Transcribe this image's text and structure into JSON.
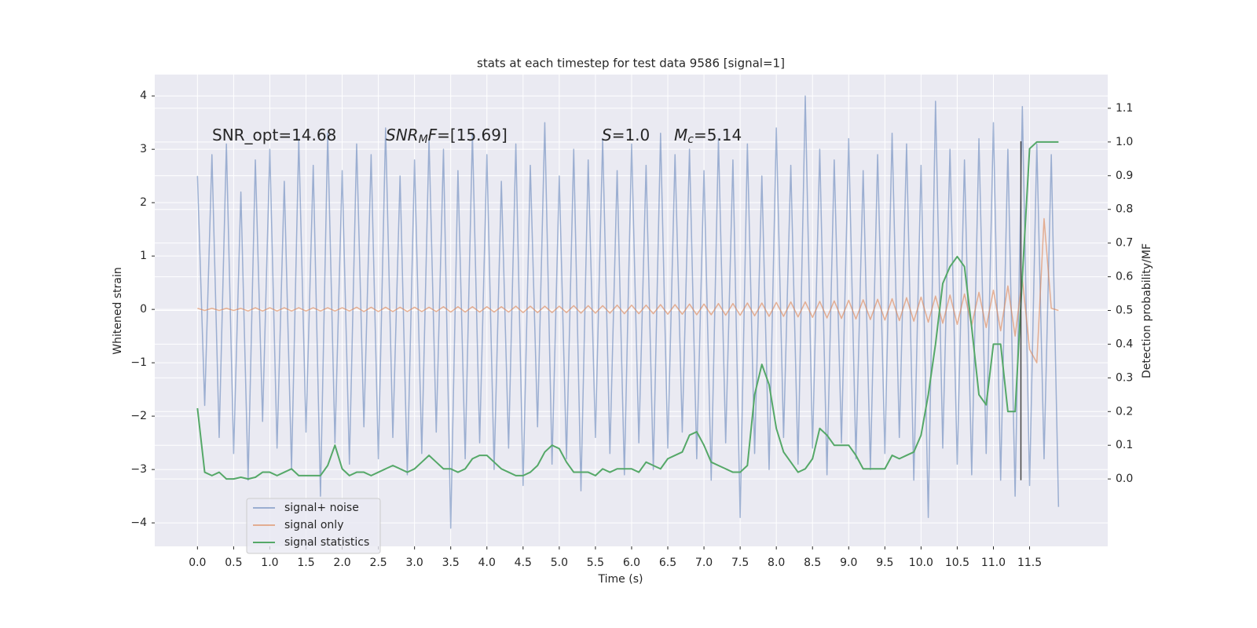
{
  "chart_data": {
    "type": "line",
    "title": "stats at each timestep for test data 9586 [signal=1]",
    "xlabel": "Time (s)",
    "ylabel": "Whitened strain",
    "y2label": "Detection probability/MF",
    "annotations": [
      [
        "SNR_opt=14.68"
      ],
      [
        "SNR",
        "M",
        "F",
        "=[15.69]"
      ],
      [
        "S",
        "=1.0"
      ],
      [
        "M",
        "c",
        "=5.14"
      ]
    ],
    "xlim": [
      -0.59,
      12.58
    ],
    "ylim": [
      -4.44,
      4.4
    ],
    "y2lim": [
      -0.2,
      1.2
    ],
    "xticks": [
      {
        "value": 0,
        "label": "0.0"
      },
      0.5,
      {
        "value": 1,
        "label": "1.0"
      },
      1.5,
      {
        "value": 2,
        "label": "2.0"
      },
      2.5,
      {
        "value": 3,
        "label": "3.0"
      },
      3.5,
      {
        "value": 4,
        "label": "4.0"
      },
      4.5,
      {
        "value": 5,
        "label": "5.0"
      },
      5.5,
      {
        "value": 6,
        "label": "6.0"
      },
      6.5,
      {
        "value": 7,
        "label": "7.0"
      },
      7.5,
      {
        "value": 8,
        "label": "8.0"
      },
      8.5,
      {
        "value": 9,
        "label": "9.0"
      },
      9.5,
      {
        "value": 10,
        "label": "10.0"
      },
      10.5,
      {
        "value": 11,
        "label": "11.0"
      },
      11.5
    ],
    "yticks": [
      {
        "value": -4,
        "label": "−4"
      },
      {
        "value": -3,
        "label": "−3"
      },
      {
        "value": -2,
        "label": "−2"
      },
      {
        "value": -1,
        "label": "−1"
      },
      0,
      1,
      2,
      3,
      4
    ],
    "y2ticks": [
      {
        "value": 0,
        "label": "0.0"
      },
      0.1,
      0.2,
      0.3,
      0.4,
      0.5,
      0.6,
      0.7,
      0.8,
      0.9,
      {
        "value": 1,
        "label": "1.0"
      },
      1.1
    ],
    "grid": true,
    "legend": "lower left",
    "vline": {
      "x": 11.38,
      "y": [
        -3.2,
        3.15
      ],
      "color": "#444444"
    },
    "x": [
      0.0,
      0.1,
      0.2,
      0.3,
      0.4,
      0.5,
      0.6,
      0.7,
      0.8,
      0.9,
      1.0,
      1.1,
      1.2,
      1.3,
      1.4,
      1.5,
      1.6,
      1.7,
      1.8,
      1.9,
      2.0,
      2.1,
      2.2,
      2.3,
      2.4,
      2.5,
      2.6,
      2.7,
      2.8,
      2.9,
      3.0,
      3.1,
      3.2,
      3.3,
      3.4,
      3.5,
      3.6,
      3.7,
      3.8,
      3.9,
      4.0,
      4.1,
      4.2,
      4.3,
      4.4,
      4.5,
      4.6,
      4.7,
      4.8,
      4.9,
      5.0,
      5.1,
      5.2,
      5.3,
      5.4,
      5.5,
      5.6,
      5.7,
      5.8,
      5.9,
      6.0,
      6.1,
      6.2,
      6.3,
      6.4,
      6.5,
      6.6,
      6.7,
      6.8,
      6.9,
      7.0,
      7.1,
      7.2,
      7.3,
      7.4,
      7.5,
      7.6,
      7.7,
      7.8,
      7.9,
      8.0,
      8.1,
      8.2,
      8.3,
      8.4,
      8.5,
      8.6,
      8.7,
      8.8,
      8.9,
      9.0,
      9.1,
      9.2,
      9.3,
      9.4,
      9.5,
      9.6,
      9.7,
      9.8,
      9.9,
      10.0,
      10.1,
      10.2,
      10.3,
      10.4,
      10.5,
      10.6,
      10.7,
      10.8,
      10.9,
      11.0,
      11.1,
      11.2,
      11.3,
      11.4,
      11.5,
      11.6,
      11.7,
      11.8,
      11.9
    ],
    "series": [
      {
        "name": "signal+ noise",
        "color": "#4c72b0",
        "values": [
          2.5,
          -1.8,
          2.9,
          -2.4,
          3.1,
          -2.7,
          2.2,
          -3.2,
          2.8,
          -2.1,
          3.0,
          -2.6,
          2.4,
          -3.0,
          3.2,
          -2.3,
          2.7,
          -3.5,
          3.3,
          -2.5,
          2.6,
          -2.9,
          3.1,
          -2.2,
          2.9,
          -2.8,
          3.4,
          -2.4,
          2.5,
          -3.1,
          2.8,
          -2.7,
          3.2,
          -2.3,
          3.0,
          -4.1,
          2.6,
          -2.8,
          3.3,
          -2.5,
          2.9,
          -3.0,
          2.4,
          -2.6,
          3.1,
          -3.3,
          2.7,
          -2.2,
          3.5,
          -2.9,
          2.5,
          -2.8,
          3.0,
          -3.4,
          2.8,
          -2.4,
          3.2,
          -2.7,
          2.6,
          -3.1,
          3.1,
          -2.5,
          2.7,
          -3.0,
          3.3,
          -2.6,
          2.9,
          -2.3,
          3.0,
          -2.8,
          2.6,
          -3.2,
          3.2,
          -2.5,
          2.8,
          -3.9,
          3.1,
          -2.7,
          2.5,
          -3.0,
          3.4,
          -2.4,
          2.7,
          -2.9,
          4.0,
          -2.6,
          3.0,
          -3.1,
          2.8,
          -2.5,
          3.2,
          -2.8,
          2.6,
          -3.0,
          2.9,
          -2.7,
          3.3,
          -2.4,
          3.1,
          -3.2,
          2.7,
          -3.9,
          3.9,
          -2.6,
          3.0,
          -2.9,
          2.8,
          -3.1,
          3.2,
          -2.7,
          3.5,
          -3.2,
          3.0,
          -3.5,
          3.8,
          -3.3,
          3.1,
          -2.8,
          2.9,
          -3.7
        ]
      },
      {
        "name": "signal only",
        "color": "#dd8452",
        "values": [
          0.02,
          -0.02,
          0.02,
          -0.02,
          0.02,
          -0.02,
          0.02,
          -0.03,
          0.03,
          -0.03,
          0.03,
          -0.03,
          0.03,
          -0.03,
          0.03,
          -0.03,
          0.03,
          -0.03,
          0.03,
          -0.03,
          0.03,
          -0.03,
          0.04,
          -0.04,
          0.04,
          -0.04,
          0.04,
          -0.04,
          0.04,
          -0.04,
          0.04,
          -0.04,
          0.04,
          -0.04,
          0.05,
          -0.05,
          0.05,
          -0.05,
          0.05,
          -0.05,
          0.05,
          -0.05,
          0.05,
          -0.05,
          0.06,
          -0.06,
          0.06,
          -0.06,
          0.06,
          -0.06,
          0.06,
          -0.06,
          0.07,
          -0.07,
          0.07,
          -0.07,
          0.07,
          -0.07,
          0.08,
          -0.08,
          0.08,
          -0.08,
          0.08,
          -0.08,
          0.09,
          -0.09,
          0.09,
          -0.09,
          0.1,
          -0.1,
          0.1,
          -0.1,
          0.11,
          -0.11,
          0.11,
          -0.11,
          0.12,
          -0.12,
          0.12,
          -0.13,
          0.13,
          -0.13,
          0.14,
          -0.14,
          0.14,
          -0.15,
          0.15,
          -0.16,
          0.16,
          -0.17,
          0.17,
          -0.18,
          0.18,
          -0.19,
          0.19,
          -0.2,
          0.2,
          -0.21,
          0.22,
          -0.22,
          0.23,
          -0.24,
          0.25,
          -0.26,
          0.27,
          -0.28,
          0.29,
          -0.3,
          0.32,
          -0.34,
          0.36,
          -0.4,
          0.44,
          -0.5,
          0.58,
          -0.75,
          -1.0,
          1.7,
          0.02,
          -0.02
        ]
      },
      {
        "name": "signal statistics",
        "color": "#55a868",
        "axis": "y2",
        "values": [
          0.21,
          0.02,
          0.01,
          0.02,
          0.0,
          0.0,
          0.005,
          0.0,
          0.005,
          0.02,
          0.02,
          0.01,
          0.02,
          0.03,
          0.01,
          0.01,
          0.01,
          0.01,
          0.04,
          0.1,
          0.03,
          0.01,
          0.02,
          0.02,
          0.01,
          0.02,
          0.03,
          0.04,
          0.03,
          0.02,
          0.03,
          0.05,
          0.07,
          0.05,
          0.03,
          0.03,
          0.02,
          0.03,
          0.06,
          0.07,
          0.07,
          0.05,
          0.03,
          0.02,
          0.01,
          0.01,
          0.02,
          0.04,
          0.08,
          0.1,
          0.09,
          0.05,
          0.02,
          0.02,
          0.02,
          0.01,
          0.03,
          0.02,
          0.03,
          0.03,
          0.03,
          0.02,
          0.05,
          0.04,
          0.03,
          0.06,
          0.07,
          0.08,
          0.13,
          0.14,
          0.1,
          0.05,
          0.04,
          0.03,
          0.02,
          0.02,
          0.04,
          0.25,
          0.34,
          0.28,
          0.15,
          0.08,
          0.05,
          0.02,
          0.03,
          0.06,
          0.15,
          0.13,
          0.1,
          0.1,
          0.1,
          0.07,
          0.03,
          0.03,
          0.03,
          0.03,
          0.07,
          0.06,
          0.07,
          0.08,
          0.13,
          0.25,
          0.4,
          0.58,
          0.63,
          0.66,
          0.63,
          0.45,
          0.25,
          0.22,
          0.4,
          0.4,
          0.2,
          0.2,
          0.6,
          0.98,
          1.0,
          1.0,
          1.0,
          1.0
        ]
      }
    ]
  }
}
